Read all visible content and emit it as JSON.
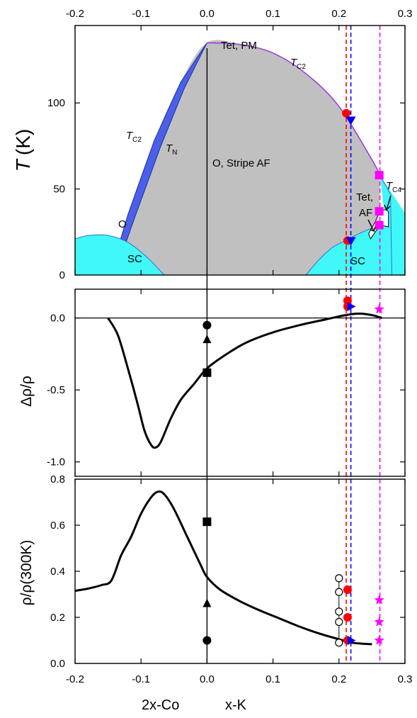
{
  "chart_data": {
    "type": "composite",
    "x_axis": {
      "range": [
        -0.2,
        0.3
      ],
      "ticks": [
        -0.2,
        -0.1,
        0.0,
        0.1,
        0.2,
        0.3
      ],
      "tick_labels": [
        "-0.2",
        "-0.1",
        "0.0",
        "0.1",
        "0.2",
        "0.3"
      ],
      "label_left": "2x-Co",
      "label_right": "x-K"
    },
    "panels": [
      {
        "id": "phase_diagram",
        "ylabel": "T (K)",
        "ylabel_main": "T",
        "ylabel_unit": "(K)",
        "ylim": [
          0,
          145
        ],
        "yticks": [
          0,
          50,
          100
        ],
        "labels": {
          "tet_pm": "Tet, PM",
          "tc2_right": "T",
          "tc2_right_sub": "C2",
          "tc2_left": "T",
          "tc2_left_sub": "C2",
          "tn": "T",
          "tn_sub": "N",
          "stripe": "O, Stripe AF",
          "o": "O",
          "sc_left": "SC",
          "sc_right": "SC",
          "tet_af_1": "Tet,",
          "tet_af_2": "AF",
          "tc4": "T",
          "tc4_sub": "C4"
        },
        "tc2_curve": [
          [
            -0.147,
            0
          ],
          [
            -0.12,
            35
          ],
          [
            -0.08,
            78
          ],
          [
            -0.04,
            112
          ],
          [
            0.0,
            135
          ],
          [
            0.05,
            134
          ],
          [
            0.1,
            129
          ],
          [
            0.15,
            117
          ],
          [
            0.2,
            98
          ],
          [
            0.25,
            67
          ],
          [
            0.262,
            58
          ]
        ],
        "tn_curve": [
          [
            -0.14,
            0
          ],
          [
            -0.11,
            33
          ],
          [
            -0.07,
            75
          ],
          [
            -0.035,
            108
          ],
          [
            0.0,
            135
          ]
        ],
        "tet_pm_region": [
          [
            0.262,
            58
          ],
          [
            0.278,
            47
          ],
          [
            0.28,
            0
          ]
        ],
        "sc_left": [
          [
            -0.2,
            21
          ],
          [
            -0.18,
            23
          ],
          [
            -0.15,
            23
          ],
          [
            -0.12,
            19
          ],
          [
            -0.09,
            10
          ],
          [
            -0.065,
            0
          ]
        ],
        "sc_right": [
          [
            0.15,
            0
          ],
          [
            0.17,
            9
          ],
          [
            0.19,
            16
          ],
          [
            0.21,
            20
          ],
          [
            0.23,
            24
          ],
          [
            0.26,
            29
          ],
          [
            0.28,
            33
          ],
          [
            0.3,
            35
          ]
        ],
        "tet_af_pocket": [
          [
            0.245,
            24
          ],
          [
            0.255,
            31
          ],
          [
            0.262,
            37
          ],
          [
            0.27,
            38
          ],
          [
            0.275,
            37
          ],
          [
            0.275,
            28
          ],
          [
            0.262,
            29
          ],
          [
            0.248,
            21
          ]
        ],
        "markers": [
          {
            "x": 0.211,
            "y": 94,
            "shape": "circle",
            "color": "#ff0000"
          },
          {
            "x": 0.213,
            "y": 20,
            "shape": "circle",
            "color": "#ff0000"
          },
          {
            "x": 0.218,
            "y": 90,
            "shape": "triangle-down",
            "color": "#0000ff"
          },
          {
            "x": 0.218,
            "y": 20,
            "shape": "triangle-down",
            "color": "#0000ff"
          },
          {
            "x": 0.261,
            "y": 58,
            "shape": "square",
            "color": "#ff00ff"
          },
          {
            "x": 0.261,
            "y": 37,
            "shape": "square",
            "color": "#ff00ff"
          },
          {
            "x": 0.261,
            "y": 29,
            "shape": "square",
            "color": "#ff00ff"
          }
        ]
      },
      {
        "id": "magnetoresistance",
        "ylabel": "Δρ/ρ",
        "ylim": [
          -1.1,
          0.2
        ],
        "yticks": [
          -1.0,
          -0.5,
          0.0
        ],
        "ytick_labels": [
          "-1.0",
          "-0.5",
          "0.0"
        ],
        "curve": [
          [
            -0.15,
            0.0
          ],
          [
            -0.135,
            -0.12
          ],
          [
            -0.12,
            -0.35
          ],
          [
            -0.105,
            -0.6
          ],
          [
            -0.095,
            -0.78
          ],
          [
            -0.085,
            -0.88
          ],
          [
            -0.078,
            -0.9
          ],
          [
            -0.07,
            -0.86
          ],
          [
            -0.055,
            -0.7
          ],
          [
            -0.04,
            -0.57
          ],
          [
            -0.02,
            -0.46
          ],
          [
            0.0,
            -0.35
          ],
          [
            0.03,
            -0.25
          ],
          [
            0.06,
            -0.17
          ],
          [
            0.1,
            -0.1
          ],
          [
            0.14,
            -0.05
          ],
          [
            0.18,
            -0.01
          ],
          [
            0.21,
            0.02
          ],
          [
            0.23,
            0.03
          ],
          [
            0.25,
            0.02
          ],
          [
            0.265,
            0.0
          ]
        ],
        "markers": [
          {
            "x": 0.0,
            "y": -0.05,
            "shape": "circle",
            "color": "#000000"
          },
          {
            "x": 0.0,
            "y": -0.15,
            "shape": "triangle-up",
            "color": "#000000"
          },
          {
            "x": 0.0,
            "y": -0.38,
            "shape": "square",
            "color": "#000000"
          },
          {
            "x": 0.213,
            "y": 0.12,
            "shape": "circle",
            "color": "#ff0000"
          },
          {
            "x": 0.213,
            "y": 0.08,
            "shape": "circle",
            "color": "#ff0000"
          },
          {
            "x": 0.218,
            "y": 0.08,
            "shape": "triangle-right",
            "color": "#0000ff"
          },
          {
            "x": 0.261,
            "y": 0.06,
            "shape": "star",
            "color": "#ff00ff"
          }
        ]
      },
      {
        "id": "resistivity_ratio",
        "ylabel": "ρ/ρ(300K)",
        "ylim": [
          0,
          0.8
        ],
        "yticks": [
          0.0,
          0.2,
          0.4,
          0.6,
          0.8
        ],
        "ytick_labels": [
          "0.0",
          "0.2",
          "0.4",
          "0.6",
          "0.8"
        ],
        "curve": [
          [
            -0.2,
            0.315
          ],
          [
            -0.18,
            0.325
          ],
          [
            -0.16,
            0.34
          ],
          [
            -0.145,
            0.36
          ],
          [
            -0.13,
            0.47
          ],
          [
            -0.115,
            0.55
          ],
          [
            -0.1,
            0.65
          ],
          [
            -0.085,
            0.72
          ],
          [
            -0.075,
            0.745
          ],
          [
            -0.065,
            0.735
          ],
          [
            -0.05,
            0.67
          ],
          [
            -0.03,
            0.55
          ],
          [
            -0.01,
            0.43
          ],
          [
            0.0,
            0.375
          ],
          [
            0.02,
            0.32
          ],
          [
            0.05,
            0.27
          ],
          [
            0.08,
            0.23
          ],
          [
            0.11,
            0.195
          ],
          [
            0.14,
            0.16
          ],
          [
            0.17,
            0.13
          ],
          [
            0.2,
            0.105
          ],
          [
            0.22,
            0.09
          ],
          [
            0.24,
            0.085
          ],
          [
            0.25,
            0.083
          ]
        ],
        "markers": [
          {
            "x": 0.0,
            "y": 0.1,
            "shape": "circle",
            "color": "#000000"
          },
          {
            "x": 0.0,
            "y": 0.26,
            "shape": "triangle-up",
            "color": "#000000"
          },
          {
            "x": 0.0,
            "y": 0.615,
            "shape": "square",
            "color": "#000000"
          },
          {
            "x": 0.2,
            "y": 0.37,
            "shape": "open-circle",
            "color": "#000000"
          },
          {
            "x": 0.2,
            "y": 0.31,
            "shape": "open-circle",
            "color": "#000000"
          },
          {
            "x": 0.2,
            "y": 0.225,
            "shape": "open-circle",
            "color": "#000000"
          },
          {
            "x": 0.2,
            "y": 0.18,
            "shape": "open-circle",
            "color": "#000000"
          },
          {
            "x": 0.2,
            "y": 0.09,
            "shape": "open-circle",
            "color": "#000000"
          },
          {
            "x": 0.213,
            "y": 0.32,
            "shape": "circle",
            "color": "#ff0000"
          },
          {
            "x": 0.213,
            "y": 0.2,
            "shape": "circle",
            "color": "#ff0000"
          },
          {
            "x": 0.213,
            "y": 0.1,
            "shape": "circle",
            "color": "#ff0000"
          },
          {
            "x": 0.218,
            "y": 0.1,
            "shape": "triangle-right",
            "color": "#0000ff"
          },
          {
            "x": 0.261,
            "y": 0.275,
            "shape": "star",
            "color": "#ff00ff"
          },
          {
            "x": 0.261,
            "y": 0.18,
            "shape": "star",
            "color": "#ff00ff"
          },
          {
            "x": 0.261,
            "y": 0.1,
            "shape": "star",
            "color": "#ff00ff"
          }
        ]
      }
    ],
    "vertical_lines": [
      {
        "x": 0.0,
        "color": "#000000",
        "style": "solid"
      },
      {
        "x": 0.211,
        "color": "#ff0000",
        "style": "dashed"
      },
      {
        "x": 0.218,
        "color": "#0000ff",
        "style": "dashed"
      },
      {
        "x": 0.262,
        "color": "#ff00ff",
        "style": "dashed"
      }
    ],
    "colors": {
      "ordered_region": "#c0c0c0",
      "o_region": "#4b5fe8",
      "sc_region": "#40f8f8",
      "tc2_line": "#9b40e0",
      "red": "#ff0000",
      "blue": "#0000ff",
      "magenta": "#ff00ff"
    }
  }
}
